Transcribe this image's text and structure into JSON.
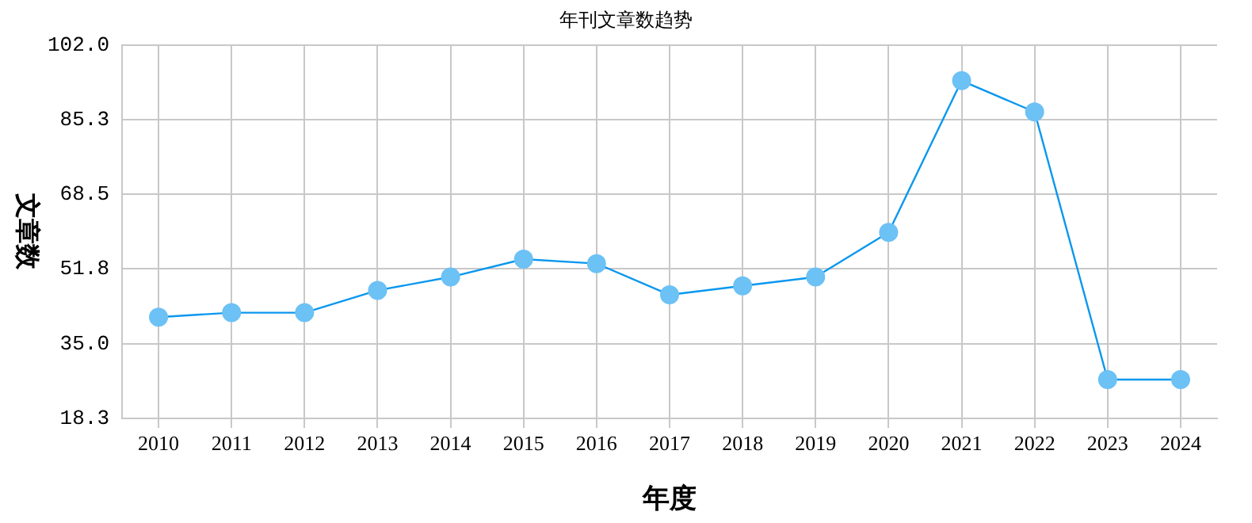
{
  "chart_data": {
    "type": "line",
    "title": "年刊文章数趋势",
    "xlabel": "年度",
    "ylabel": "文章数",
    "categories": [
      "2010",
      "2011",
      "2012",
      "2013",
      "2014",
      "2015",
      "2016",
      "2017",
      "2018",
      "2019",
      "2020",
      "2021",
      "2022",
      "2023",
      "2024"
    ],
    "series": [
      {
        "color": "#0a97ee",
        "values": [
          41,
          42,
          42,
          47,
          50,
          54,
          53,
          46,
          48,
          50,
          60,
          94,
          87,
          27,
          27
        ]
      }
    ],
    "ylim": [
      18.3,
      102.0
    ],
    "yticks": [
      {
        "value": 18.3,
        "label": "18.3"
      },
      {
        "value": 35,
        "label": "35.0"
      },
      {
        "value": 51.8,
        "label": "51.8"
      },
      {
        "value": 68.5,
        "label": "68.5"
      },
      {
        "value": 85.3,
        "label": "85.3"
      },
      {
        "value": 102,
        "label": "102.0"
      }
    ],
    "grid": true,
    "marker": "circle",
    "line_style": "solid",
    "legend": false
  }
}
